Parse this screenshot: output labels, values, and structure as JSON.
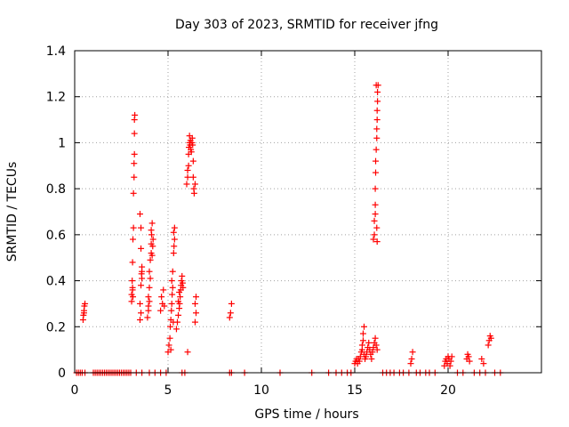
{
  "chart_data": {
    "type": "scatter",
    "title": "Day 303 of 2023, SRMTID for receiver jfng",
    "xlabel": "GPS time / hours",
    "ylabel": "SRMTID / TECUs",
    "xlim": [
      0,
      25
    ],
    "ylim": [
      0,
      1.4
    ],
    "xticks": [
      0,
      5,
      10,
      15,
      20
    ],
    "xtick_labels": [
      "0",
      "5",
      "10",
      "15",
      "20"
    ],
    "yticks": [
      0,
      0.2,
      0.4,
      0.6,
      0.8,
      1.0,
      1.2,
      1.4
    ],
    "ytick_labels": [
      "0",
      "0.2",
      "0.4",
      "0.6",
      "0.8",
      "1",
      "1.2",
      "1.4"
    ],
    "grid": true,
    "marker": "+",
    "color": "#ff0000",
    "series": [
      {
        "name": "SRMTID",
        "points": [
          [
            0.1,
            0
          ],
          [
            0.2,
            0
          ],
          [
            0.3,
            0
          ],
          [
            0.4,
            0
          ],
          [
            0.55,
            0
          ],
          [
            0.45,
            0.23
          ],
          [
            0.47,
            0.25
          ],
          [
            0.5,
            0.27
          ],
          [
            0.52,
            0.29
          ],
          [
            0.55,
            0.3
          ],
          [
            0.5,
            0.26
          ],
          [
            1.0,
            0
          ],
          [
            1.1,
            0
          ],
          [
            1.2,
            0
          ],
          [
            1.3,
            0
          ],
          [
            1.4,
            0
          ],
          [
            1.5,
            0
          ],
          [
            1.6,
            0
          ],
          [
            1.7,
            0
          ],
          [
            1.8,
            0
          ],
          [
            1.9,
            0
          ],
          [
            2.0,
            0
          ],
          [
            2.1,
            0
          ],
          [
            2.2,
            0
          ],
          [
            2.3,
            0
          ],
          [
            2.4,
            0
          ],
          [
            2.5,
            0
          ],
          [
            2.6,
            0
          ],
          [
            2.7,
            0
          ],
          [
            2.8,
            0
          ],
          [
            2.9,
            0
          ],
          [
            3.0,
            0
          ],
          [
            3.3,
            0
          ],
          [
            3.6,
            0
          ],
          [
            4.0,
            0
          ],
          [
            4.3,
            0
          ],
          [
            4.6,
            0
          ],
          [
            4.9,
            0
          ],
          [
            3.05,
            0.31
          ],
          [
            3.05,
            0.34
          ],
          [
            3.1,
            0.37
          ],
          [
            3.08,
            0.4
          ],
          [
            3.1,
            0.36
          ],
          [
            3.12,
            0.33
          ],
          [
            3.1,
            0.48
          ],
          [
            3.12,
            0.58
          ],
          [
            3.15,
            0.63
          ],
          [
            3.15,
            0.78
          ],
          [
            3.18,
            0.85
          ],
          [
            3.18,
            0.91
          ],
          [
            3.2,
            0.95
          ],
          [
            3.2,
            1.04
          ],
          [
            3.2,
            1.1
          ],
          [
            3.22,
            1.12
          ],
          [
            3.5,
            0.23
          ],
          [
            3.55,
            0.26
          ],
          [
            3.5,
            0.3
          ],
          [
            3.55,
            0.38
          ],
          [
            3.6,
            0.41
          ],
          [
            3.6,
            0.44
          ],
          [
            3.6,
            0.46
          ],
          [
            3.55,
            0.54
          ],
          [
            3.55,
            0.63
          ],
          [
            3.5,
            0.69
          ],
          [
            3.58,
            0.43
          ],
          [
            3.9,
            0.24
          ],
          [
            3.95,
            0.27
          ],
          [
            3.95,
            0.29
          ],
          [
            4.0,
            0.31
          ],
          [
            3.95,
            0.33
          ],
          [
            4.0,
            0.37
          ],
          [
            4.05,
            0.41
          ],
          [
            4.0,
            0.44
          ],
          [
            4.05,
            0.49
          ],
          [
            4.1,
            0.52
          ],
          [
            4.1,
            0.56
          ],
          [
            4.12,
            0.6
          ],
          [
            4.1,
            0.62
          ],
          [
            4.15,
            0.65
          ],
          [
            4.18,
            0.55
          ],
          [
            4.2,
            0.58
          ],
          [
            4.15,
            0.51
          ],
          [
            4.6,
            0.27
          ],
          [
            4.7,
            0.3
          ],
          [
            4.65,
            0.33
          ],
          [
            4.75,
            0.36
          ],
          [
            4.8,
            0.29
          ],
          [
            5.0,
            0.09
          ],
          [
            5.05,
            0.12
          ],
          [
            5.1,
            0.15
          ],
          [
            5.12,
            0.2
          ],
          [
            5.15,
            0.23
          ],
          [
            5.18,
            0.27
          ],
          [
            5.2,
            0.3
          ],
          [
            5.22,
            0.34
          ],
          [
            5.25,
            0.37
          ],
          [
            5.2,
            0.4
          ],
          [
            5.25,
            0.44
          ],
          [
            5.3,
            0.52
          ],
          [
            5.32,
            0.55
          ],
          [
            5.35,
            0.58
          ],
          [
            5.3,
            0.61
          ],
          [
            5.35,
            0.63
          ],
          [
            5.15,
            0.1
          ],
          [
            5.28,
            0.22
          ],
          [
            5.45,
            0.19
          ],
          [
            5.5,
            0.22
          ],
          [
            5.55,
            0.25
          ],
          [
            5.6,
            0.28
          ],
          [
            5.62,
            0.3
          ],
          [
            5.65,
            0.33
          ],
          [
            5.68,
            0.36
          ],
          [
            5.7,
            0.38
          ],
          [
            5.72,
            0.4
          ],
          [
            5.75,
            0.42
          ],
          [
            5.78,
            0.39
          ],
          [
            5.8,
            0.37
          ],
          [
            5.55,
            0.31
          ],
          [
            5.6,
            0.35
          ],
          [
            5.75,
            0
          ],
          [
            5.9,
            0
          ],
          [
            6.05,
            0.09
          ],
          [
            6.0,
            0.82
          ],
          [
            6.05,
            0.85
          ],
          [
            6.05,
            0.88
          ],
          [
            6.1,
            0.9
          ],
          [
            6.1,
            0.95
          ],
          [
            6.12,
            0.98
          ],
          [
            6.15,
            1.0
          ],
          [
            6.15,
            1.03
          ],
          [
            6.18,
            0.99
          ],
          [
            6.2,
            1.01
          ],
          [
            6.22,
            0.97
          ],
          [
            6.25,
            0.96
          ],
          [
            6.28,
            1.0
          ],
          [
            6.3,
            1.02
          ],
          [
            6.32,
            0.99
          ],
          [
            6.35,
            0.92
          ],
          [
            6.35,
            0.85
          ],
          [
            6.38,
            0.8
          ],
          [
            6.4,
            0.78
          ],
          [
            6.45,
            0.82
          ],
          [
            6.45,
            0.22
          ],
          [
            6.5,
            0.26
          ],
          [
            6.45,
            0.3
          ],
          [
            6.5,
            0.33
          ],
          [
            8.3,
            0
          ],
          [
            8.4,
            0
          ],
          [
            8.3,
            0.24
          ],
          [
            8.35,
            0.26
          ],
          [
            8.4,
            0.3
          ],
          [
            9.1,
            0
          ],
          [
            11.0,
            0
          ],
          [
            12.7,
            0
          ],
          [
            13.6,
            0
          ],
          [
            14.0,
            0
          ],
          [
            14.3,
            0
          ],
          [
            14.6,
            0
          ],
          [
            14.8,
            0
          ],
          [
            15.0,
            0.04
          ],
          [
            15.05,
            0.05
          ],
          [
            15.1,
            0.06
          ],
          [
            15.15,
            0.04
          ],
          [
            15.2,
            0.06
          ],
          [
            15.25,
            0.05
          ],
          [
            15.3,
            0.07
          ],
          [
            15.35,
            0.09
          ],
          [
            15.4,
            0.1
          ],
          [
            15.4,
            0.12
          ],
          [
            15.45,
            0.14
          ],
          [
            15.45,
            0.17
          ],
          [
            15.5,
            0.2
          ],
          [
            15.5,
            0.08
          ],
          [
            15.55,
            0.06
          ],
          [
            15.6,
            0.07
          ],
          [
            15.65,
            0.09
          ],
          [
            15.7,
            0.11
          ],
          [
            15.75,
            0.13
          ],
          [
            15.8,
            0.1
          ],
          [
            15.85,
            0.08
          ],
          [
            15.9,
            0.06
          ],
          [
            15.95,
            0.09
          ],
          [
            16.0,
            0.11
          ],
          [
            16.05,
            0.13
          ],
          [
            16.1,
            0.15
          ],
          [
            16.15,
            0.12
          ],
          [
            16.2,
            0.1
          ],
          [
            16.0,
            0.58
          ],
          [
            16.05,
            0.6
          ],
          [
            16.05,
            0.66
          ],
          [
            16.1,
            0.69
          ],
          [
            16.1,
            0.73
          ],
          [
            16.1,
            0.8
          ],
          [
            16.12,
            0.87
          ],
          [
            16.12,
            0.92
          ],
          [
            16.15,
            0.97
          ],
          [
            16.18,
            1.02
          ],
          [
            16.18,
            1.06
          ],
          [
            16.2,
            1.1
          ],
          [
            16.2,
            1.14
          ],
          [
            16.22,
            1.18
          ],
          [
            16.22,
            1.22
          ],
          [
            16.25,
            1.25
          ],
          [
            16.15,
            1.25
          ],
          [
            16.2,
            0.57
          ],
          [
            16.18,
            0.63
          ],
          [
            16.5,
            0
          ],
          [
            16.7,
            0
          ],
          [
            16.9,
            0
          ],
          [
            17.1,
            0
          ],
          [
            17.4,
            0
          ],
          [
            17.6,
            0
          ],
          [
            17.9,
            0
          ],
          [
            18.0,
            0.04
          ],
          [
            18.05,
            0.06
          ],
          [
            18.1,
            0.09
          ],
          [
            18.3,
            0
          ],
          [
            18.5,
            0
          ],
          [
            18.8,
            0
          ],
          [
            19.0,
            0
          ],
          [
            19.3,
            0
          ],
          [
            19.8,
            0.03
          ],
          [
            19.85,
            0.05
          ],
          [
            19.9,
            0.06
          ],
          [
            19.95,
            0.04
          ],
          [
            20.0,
            0.07
          ],
          [
            20.05,
            0.06
          ],
          [
            20.1,
            0.03
          ],
          [
            20.15,
            0.05
          ],
          [
            20.2,
            0.07
          ],
          [
            20.5,
            0
          ],
          [
            20.8,
            0
          ],
          [
            21.0,
            0.06
          ],
          [
            21.05,
            0.08
          ],
          [
            21.1,
            0.07
          ],
          [
            21.15,
            0.05
          ],
          [
            21.4,
            0
          ],
          [
            21.7,
            0
          ],
          [
            21.8,
            0.06
          ],
          [
            21.9,
            0.04
          ],
          [
            22.0,
            0
          ],
          [
            22.15,
            0.12
          ],
          [
            22.2,
            0.14
          ],
          [
            22.25,
            0.16
          ],
          [
            22.3,
            0.15
          ],
          [
            22.5,
            0
          ],
          [
            22.8,
            0
          ]
        ]
      }
    ]
  }
}
